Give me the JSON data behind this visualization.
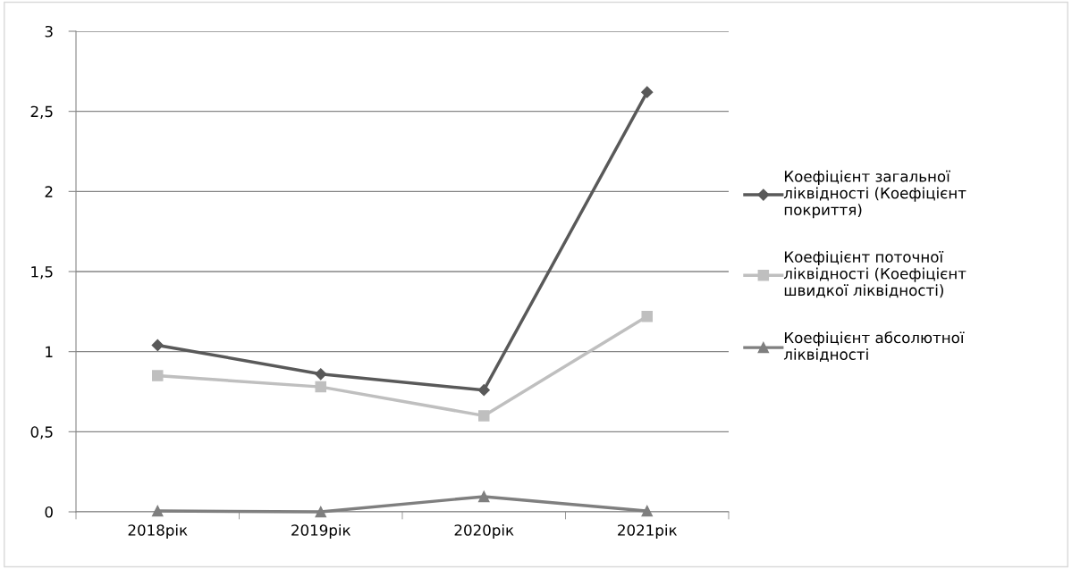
{
  "chart_data": {
    "type": "line",
    "categories": [
      "2018рік",
      "2019рік",
      "2020рік",
      "2021рік"
    ],
    "series": [
      {
        "name": "Коефіцієнт загальної\nліквідності (Коефіцієнт\nпокриття)",
        "color": "#595959",
        "marker": "diamond",
        "values": [
          1.04,
          0.86,
          0.76,
          2.62
        ]
      },
      {
        "name": "Коефіцієнт поточної\nліквідності (Коефіцієнт\nшвидкої ліквідності)",
        "color": "#bfbfbf",
        "marker": "square",
        "values": [
          0.85,
          0.78,
          0.6,
          1.22
        ]
      },
      {
        "name": "Коефіцієнт абсолютної\nліквідності",
        "color": "#7f7f7f",
        "marker": "triangle",
        "values": [
          0.005,
          0,
          0.095,
          0.005
        ]
      }
    ],
    "ylim": [
      0,
      3
    ],
    "yticks": [
      {
        "value": 0,
        "label": "0"
      },
      {
        "value": 0.5,
        "label": "0,5"
      },
      {
        "value": 1,
        "label": "1"
      },
      {
        "value": 1.5,
        "label": "1,5"
      },
      {
        "value": 2,
        "label": "2"
      },
      {
        "value": 2.5,
        "label": "2,5"
      },
      {
        "value": 3,
        "label": "3"
      }
    ],
    "grid": "y",
    "legend": "right",
    "line_style": "solid"
  }
}
